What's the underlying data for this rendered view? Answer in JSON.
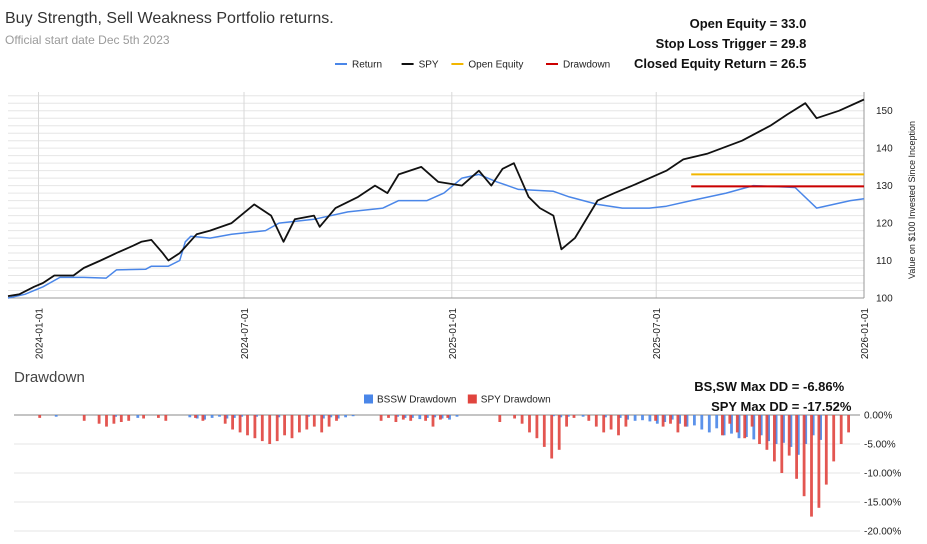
{
  "title": "Buy Strength, Sell Weakness Portfolio returns.",
  "subtitle": "Official start date Dec 5th 2023",
  "stats": [
    {
      "label": "Open Equity =",
      "value": "33.0"
    },
    {
      "label": "Stop Loss Trigger =",
      "value": "29.8"
    },
    {
      "label": "Closed Equity Return =",
      "value": "26.5"
    }
  ],
  "dd_title": "Drawdown",
  "dd_stats": [
    {
      "label": "BS,SW Max DD =",
      "value": "-6.86%"
    },
    {
      "label": "SPY Max DD =",
      "value": "-17.52%"
    }
  ],
  "colors": {
    "return": "#4a86e8",
    "spy": "#111111",
    "open_equity": "#f2b600",
    "drawdown_line": "#cc0000",
    "bssw_dd": "#4a86e8",
    "spy_dd": "#e0443e",
    "grid": "#e6e6e6"
  },
  "chart_data": [
    {
      "type": "line",
      "title": "Buy Strength, Sell Weakness Portfolio returns.",
      "ylabel": "Value on $100 Invested Since Inception",
      "y_right_axis": true,
      "ylim": [
        100,
        155
      ],
      "yticks": [
        100,
        110,
        120,
        130,
        140,
        150
      ],
      "xlim": [
        "2023-12-05",
        "2026-01-01"
      ],
      "xticks": [
        "2024-01-01",
        "2024-07-01",
        "2025-01-01",
        "2025-07-01",
        "2026-01-01"
      ],
      "legend_position": "top",
      "series": [
        {
          "name": "Return",
          "color": "#4a86e8",
          "points": [
            [
              "2023-12-05",
              100
            ],
            [
              "2023-12-20",
              101
            ],
            [
              "2024-01-05",
              103
            ],
            [
              "2024-01-20",
              105.5
            ],
            [
              "2024-02-10",
              105.5
            ],
            [
              "2024-03-01",
              105.3
            ],
            [
              "2024-03-10",
              107.5
            ],
            [
              "2024-04-05",
              107.7
            ],
            [
              "2024-04-10",
              108.5
            ],
            [
              "2024-04-25",
              108.5
            ],
            [
              "2024-05-05",
              110
            ],
            [
              "2024-05-10",
              115
            ],
            [
              "2024-05-15",
              116.5
            ],
            [
              "2024-06-01",
              116
            ],
            [
              "2024-06-20",
              117
            ],
            [
              "2024-07-20",
              118
            ],
            [
              "2024-08-01",
              120
            ],
            [
              "2024-09-01",
              121
            ],
            [
              "2024-10-01",
              123
            ],
            [
              "2024-11-01",
              124
            ],
            [
              "2024-11-15",
              126
            ],
            [
              "2024-12-10",
              126
            ],
            [
              "2024-12-25",
              128
            ],
            [
              "2025-01-10",
              132
            ],
            [
              "2025-01-25",
              133
            ],
            [
              "2025-02-10",
              131
            ],
            [
              "2025-03-01",
              129
            ],
            [
              "2025-04-01",
              128.5
            ],
            [
              "2025-04-15",
              127
            ],
            [
              "2025-05-10",
              125
            ],
            [
              "2025-06-01",
              124
            ],
            [
              "2025-06-25",
              124
            ],
            [
              "2025-07-10",
              124.5
            ],
            [
              "2025-08-01",
              126
            ],
            [
              "2025-09-01",
              128
            ],
            [
              "2025-09-25",
              130
            ],
            [
              "2025-11-01",
              129.5
            ],
            [
              "2025-11-20",
              124
            ],
            [
              "2025-12-20",
              126
            ],
            [
              "2026-01-01",
              126.5
            ]
          ]
        },
        {
          "name": "SPY",
          "color": "#111111",
          "points": [
            [
              "2023-12-05",
              100.5
            ],
            [
              "2023-12-15",
              101
            ],
            [
              "2023-12-28",
              103
            ],
            [
              "2024-01-05",
              104
            ],
            [
              "2024-01-15",
              106
            ],
            [
              "2024-02-01",
              106
            ],
            [
              "2024-02-10",
              108
            ],
            [
              "2024-02-25",
              110
            ],
            [
              "2024-03-10",
              112
            ],
            [
              "2024-03-25",
              114
            ],
            [
              "2024-04-01",
              115
            ],
            [
              "2024-04-10",
              115.5
            ],
            [
              "2024-04-20",
              112
            ],
            [
              "2024-04-25",
              110
            ],
            [
              "2024-05-05",
              112
            ],
            [
              "2024-05-20",
              117
            ],
            [
              "2024-06-01",
              118
            ],
            [
              "2024-06-20",
              120
            ],
            [
              "2024-07-10",
              125
            ],
            [
              "2024-07-25",
              122
            ],
            [
              "2024-08-05",
              115
            ],
            [
              "2024-08-15",
              121
            ],
            [
              "2024-09-01",
              122
            ],
            [
              "2024-09-06",
              119
            ],
            [
              "2024-09-20",
              124
            ],
            [
              "2024-10-10",
              127
            ],
            [
              "2024-10-25",
              130
            ],
            [
              "2024-11-05",
              128
            ],
            [
              "2024-11-15",
              133
            ],
            [
              "2024-12-05",
              135
            ],
            [
              "2024-12-20",
              131
            ],
            [
              "2025-01-10",
              130
            ],
            [
              "2025-01-25",
              134
            ],
            [
              "2025-02-05",
              130
            ],
            [
              "2025-02-15",
              134.5
            ],
            [
              "2025-02-25",
              136
            ],
            [
              "2025-03-10",
              127
            ],
            [
              "2025-03-20",
              124
            ],
            [
              "2025-04-01",
              122
            ],
            [
              "2025-04-08",
              113
            ],
            [
              "2025-04-20",
              116
            ],
            [
              "2025-05-10",
              126
            ],
            [
              "2025-05-25",
              128
            ],
            [
              "2025-06-10",
              130
            ],
            [
              "2025-07-10",
              134
            ],
            [
              "2025-07-25",
              137
            ],
            [
              "2025-08-15",
              138.5
            ],
            [
              "2025-09-15",
              142
            ],
            [
              "2025-10-10",
              146
            ],
            [
              "2025-10-25",
              149
            ],
            [
              "2025-11-10",
              152
            ],
            [
              "2025-11-20",
              148
            ],
            [
              "2025-12-10",
              150
            ],
            [
              "2026-01-01",
              153
            ]
          ]
        },
        {
          "name": "Open Equity",
          "color": "#f2b600",
          "points": [
            [
              "2025-08-01",
              133
            ],
            [
              "2026-01-01",
              133
            ]
          ]
        },
        {
          "name": "Drawdown",
          "color": "#cc0000",
          "points": [
            [
              "2025-08-01",
              129.8
            ],
            [
              "2026-01-01",
              129.8
            ]
          ]
        }
      ]
    },
    {
      "type": "bar",
      "title": "Drawdown",
      "y_right_axis": true,
      "ylim": [
        -20,
        0
      ],
      "yticks": [
        0,
        -5,
        -10,
        -15,
        -20
      ],
      "ytick_labels": [
        "0.00%",
        "-5.00%",
        "-10.00%",
        "-15.00%",
        "-20.00%"
      ],
      "legend_position": "top",
      "series": [
        {
          "name": "BSSW Drawdown",
          "color": "#4a86e8",
          "values": [
            0,
            0,
            0,
            0,
            0,
            -0.3,
            0,
            0,
            0,
            0,
            0,
            0,
            0,
            -0.3,
            0,
            0,
            -0.5,
            0,
            0,
            0,
            0,
            0,
            0,
            -0.4,
            -0.6,
            -0.8,
            -0.5,
            -0.3,
            -0.6,
            -0.5,
            -0.3,
            0,
            -0.3,
            0,
            0,
            -0.4,
            0,
            0,
            0,
            -0.3,
            0,
            -0.6,
            -0.4,
            -0.6,
            -0.4,
            -0.2,
            0,
            0,
            0,
            0,
            0,
            -0.3,
            -0.5,
            -0.5,
            -0.7,
            -0.5,
            -0.4,
            -0.6,
            -0.8,
            -0.3,
            0,
            0,
            0,
            0,
            0,
            0,
            0,
            0,
            0,
            0,
            0,
            0,
            -0.2,
            -0.4,
            -0.3,
            0,
            -0.3,
            0,
            0,
            -0.4,
            0,
            -0.5,
            -0.8,
            -1,
            -0.9,
            -1.1,
            -1.5,
            -1.2,
            -0.8,
            -1.5,
            -2,
            -1.8,
            -2.5,
            -3,
            -2.3,
            -3.5,
            -3.2,
            -4,
            -3.8,
            -4.2,
            -3.5,
            -4.5,
            -5,
            -4.8,
            -5.5,
            -6.86,
            -5,
            -3.5,
            -4.3
          ]
        },
        {
          "name": "SPY Drawdown",
          "color": "#e0443e",
          "values": [
            0,
            0,
            0,
            -0.5,
            0,
            0,
            0,
            0,
            0,
            -1,
            0,
            -1.5,
            -2,
            -1.5,
            -1.2,
            -1,
            0,
            -0.6,
            0,
            -0.5,
            -1,
            0,
            0,
            0,
            -0.5,
            -1,
            0,
            0,
            -1.5,
            -2.5,
            -3,
            -3.5,
            -4,
            -4.5,
            -5,
            -4.5,
            -3.5,
            -4,
            -3,
            -2.5,
            -2,
            -3,
            -2,
            -1,
            0,
            0,
            0,
            0,
            0,
            -1,
            -0.5,
            -1.2,
            -0.8,
            -1,
            0,
            -1,
            -2,
            -0.8,
            -0.5,
            0,
            0,
            0,
            0,
            0,
            0,
            -1.2,
            0,
            -0.6,
            -1.5,
            -3,
            -4,
            -5.5,
            -7.5,
            -6,
            -2,
            -0.5,
            0,
            -1,
            -2,
            -3,
            -2.5,
            -3.5,
            -2,
            0,
            0,
            0,
            -1,
            -2,
            -1.5,
            -3,
            -2,
            0,
            0,
            0,
            0,
            -3.5,
            -1.5,
            -3,
            -4,
            -2,
            -5,
            -6,
            -8,
            -10,
            -7,
            -11,
            -14,
            -17.52,
            -16,
            -12,
            -8,
            -5,
            -3,
            0
          ]
        }
      ]
    }
  ]
}
